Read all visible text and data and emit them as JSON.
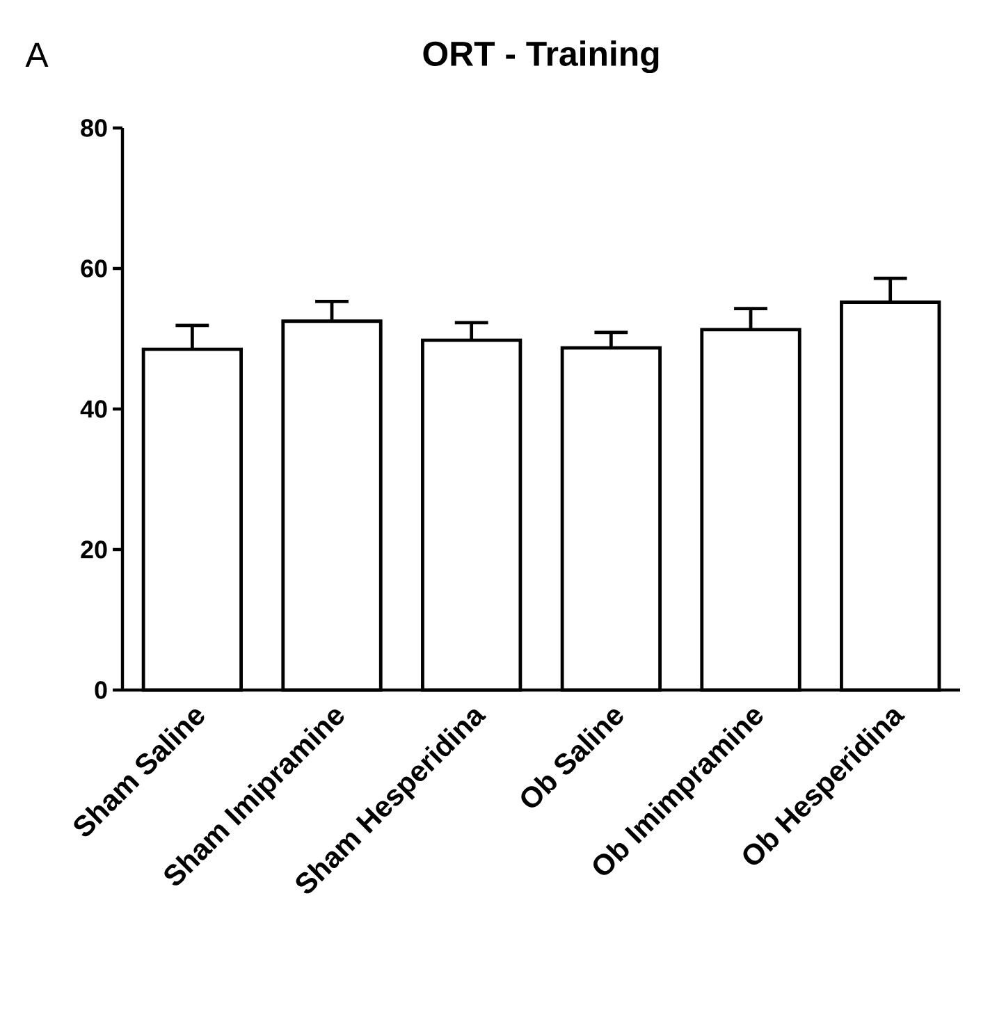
{
  "chart_data": {
    "type": "bar",
    "title": "ORT - Training",
    "annotations": [
      "A"
    ],
    "categories": [
      "Sham Saline",
      "Sham Imipramine",
      "Sham Hesperidina",
      "Ob Saline",
      "Ob Imimpramine",
      "Ob Hesperidina"
    ],
    "values": [
      48.5,
      52.5,
      49.8,
      48.7,
      51.3,
      55.2
    ],
    "errors": [
      3.4,
      2.8,
      2.5,
      2.2,
      3.0,
      3.4
    ],
    "color": "#000000",
    "ylim": [
      0,
      80
    ],
    "yticks": [
      0,
      20,
      40,
      60,
      80
    ]
  }
}
